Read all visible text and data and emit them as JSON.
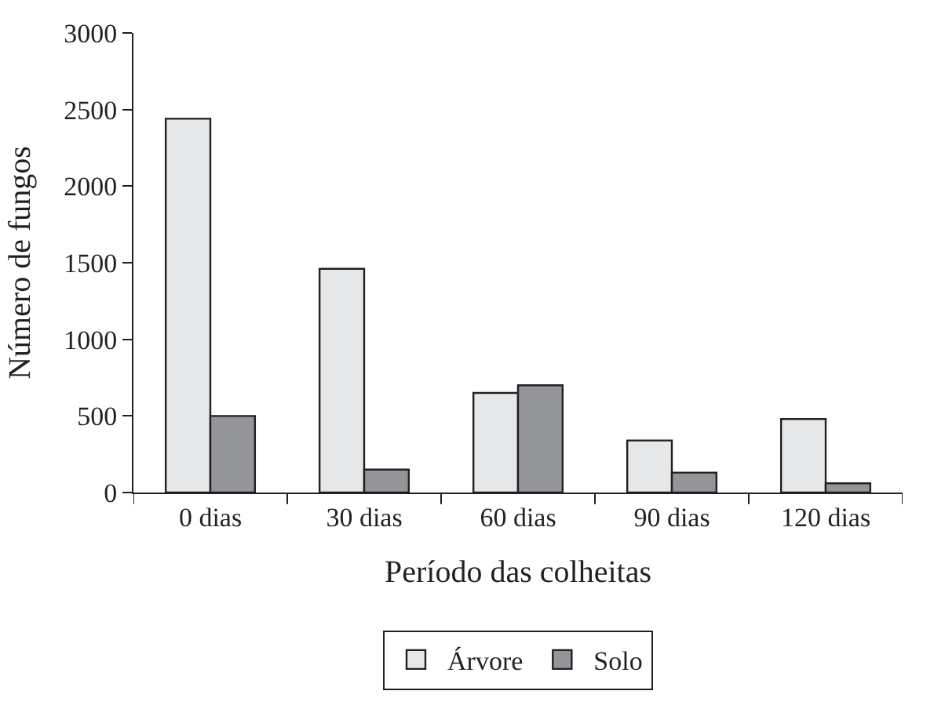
{
  "chart_data": {
    "type": "bar",
    "xlabel": "Período das colheitas",
    "ylabel": "Número de fungos",
    "categories": [
      "0 dias",
      "30 dias",
      "60 dias",
      "90 dias",
      "120 dias"
    ],
    "series": [
      {
        "name": "Árvore",
        "color": "#e6e7e8",
        "values": [
          2440,
          1460,
          650,
          340,
          480
        ]
      },
      {
        "name": "Solo",
        "color": "#939598",
        "values": [
          500,
          150,
          700,
          130,
          60
        ]
      }
    ],
    "ylim": [
      0,
      3000
    ],
    "yticks": [
      0,
      500,
      1000,
      1500,
      2000,
      2500,
      3000
    ],
    "legend": "bottom"
  }
}
